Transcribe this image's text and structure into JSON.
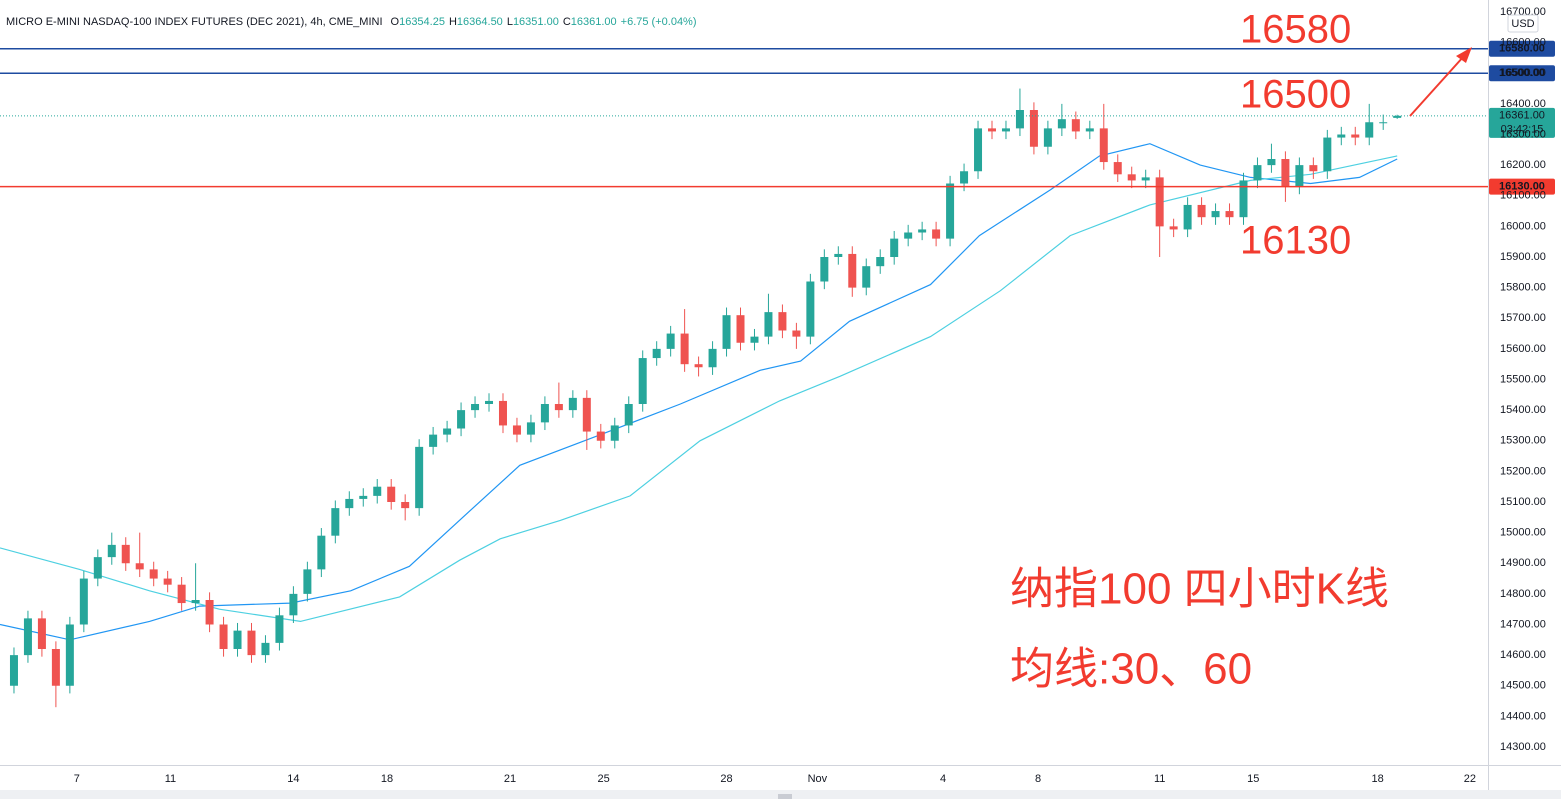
{
  "chart_data": {
    "type": "candlestick",
    "title": "MICRO E-MINI NASDAQ-100 INDEX FUTURES (DEC 2021), 4h, CME_MINI",
    "ohlc_header": [
      {
        "key": "O",
        "value": "16354.25"
      },
      {
        "key": "H",
        "value": "16364.50"
      },
      {
        "key": "L",
        "value": "16351.00"
      },
      {
        "key": "C",
        "value": "16361.00"
      }
    ],
    "change": "+6.75 (+0.04%)",
    "currency": "USD",
    "up_color": "#26a69a",
    "down_color": "#ef5350",
    "open": [
      14500,
      14600,
      14720,
      14620,
      14500,
      14700,
      14850,
      14920,
      14960,
      14900,
      14880,
      14850,
      14830,
      14770,
      14780,
      14700,
      14620,
      14680,
      14600,
      14640,
      14730,
      14800,
      14880,
      14990,
      15080,
      15110,
      15120,
      15150,
      15100,
      15080,
      15280,
      15320,
      15340,
      15400,
      15420,
      15430,
      15350,
      15320,
      15360,
      15420,
      15400,
      15440,
      15330,
      15300,
      15350,
      15420,
      15570,
      15600,
      15650,
      15550,
      15540,
      15600,
      15710,
      15620,
      15640,
      15720,
      15660,
      15640,
      15820,
      15900,
      15910,
      15800,
      15870,
      15900,
      15960,
      15980,
      15990,
      15960,
      16140,
      16180,
      16320,
      16310,
      16320,
      16380,
      16260,
      16320,
      16350,
      16310,
      16320,
      16210,
      16170,
      16150,
      16160,
      16000,
      15990,
      16070,
      16030,
      16050,
      16030,
      16150,
      16200,
      16220,
      16130,
      16200,
      16180,
      16290,
      16300,
      16290,
      16340,
      16354.25
    ],
    "high": [
      14625,
      14745,
      14745,
      14645,
      14725,
      14875,
      14945,
      15000,
      14985,
      15000,
      14905,
      14875,
      14855,
      14900,
      14805,
      14725,
      14705,
      14705,
      14665,
      14755,
      14825,
      14905,
      15015,
      15105,
      15135,
      15145,
      15175,
      15175,
      15125,
      15305,
      15345,
      15365,
      15425,
      15445,
      15455,
      15455,
      15375,
      15385,
      15445,
      15490,
      15465,
      15465,
      15355,
      15375,
      15445,
      15595,
      15625,
      15675,
      15730,
      15575,
      15625,
      15735,
      15735,
      15665,
      15780,
      15745,
      15685,
      15845,
      15925,
      15935,
      15935,
      15895,
      15925,
      15985,
      16005,
      16015,
      16015,
      16165,
      16205,
      16345,
      16345,
      16345,
      16450,
      16405,
      16345,
      16400,
      16375,
      16345,
      16400,
      16235,
      16195,
      16185,
      16185,
      16025,
      16095,
      16095,
      16075,
      16075,
      16175,
      16225,
      16270,
      16245,
      16225,
      16225,
      16315,
      16325,
      16325,
      16400,
      16365,
      16364.5
    ],
    "low": [
      14475,
      14575,
      14595,
      14430,
      14475,
      14675,
      14825,
      14895,
      14875,
      14855,
      14825,
      14805,
      14745,
      14745,
      14675,
      14595,
      14595,
      14575,
      14575,
      14615,
      14705,
      14775,
      14855,
      14965,
      15055,
      15085,
      15095,
      15075,
      15040,
      15055,
      15255,
      15295,
      15315,
      15375,
      15395,
      15325,
      15295,
      15295,
      15335,
      15375,
      15375,
      15270,
      15275,
      15275,
      15325,
      15395,
      15545,
      15575,
      15525,
      15510,
      15515,
      15575,
      15595,
      15595,
      15615,
      15635,
      15600,
      15615,
      15795,
      15875,
      15770,
      15775,
      15845,
      15875,
      15935,
      15955,
      15935,
      15935,
      16115,
      16155,
      16285,
      16285,
      16295,
      16235,
      16235,
      16295,
      16285,
      16285,
      16185,
      16145,
      16125,
      16125,
      15900,
      15965,
      15965,
      16005,
      16005,
      16005,
      16005,
      16125,
      16175,
      16080,
      16105,
      16155,
      16155,
      16265,
      16265,
      16265,
      16315,
      16351
    ],
    "close": [
      14600,
      14720,
      14620,
      14500,
      14700,
      14850,
      14920,
      14960,
      14900,
      14880,
      14850,
      14830,
      14770,
      14780,
      14700,
      14620,
      14680,
      14600,
      14640,
      14730,
      14800,
      14880,
      14990,
      15080,
      15110,
      15120,
      15150,
      15100,
      15080,
      15280,
      15320,
      15340,
      15400,
      15420,
      15430,
      15350,
      15320,
      15360,
      15420,
      15400,
      15440,
      15330,
      15300,
      15350,
      15420,
      15570,
      15600,
      15650,
      15550,
      15540,
      15600,
      15710,
      15620,
      15640,
      15720,
      15660,
      15640,
      15820,
      15900,
      15910,
      15800,
      15870,
      15900,
      15960,
      15980,
      15990,
      15960,
      16140,
      16180,
      16320,
      16310,
      16320,
      16380,
      16260,
      16320,
      16350,
      16310,
      16320,
      16210,
      16170,
      16150,
      16160,
      16000,
      15990,
      16070,
      16030,
      16050,
      16030,
      16150,
      16200,
      16220,
      16130,
      16200,
      16180,
      16290,
      16300,
      16290,
      16340,
      16340,
      16361
    ],
    "series": [
      {
        "color": "#2196f3",
        "x": [
          -1,
          4,
          9.7,
          13.3,
          19.8,
          24.1,
          28.3,
          32.6,
          36.2,
          42,
          47.7,
          53.4,
          56.3,
          59.8,
          65.6,
          69.1,
          74.2,
          77.7,
          81.3,
          84.9,
          88.5,
          92.8,
          96.3,
          99
        ],
        "values": [
          14700,
          14650,
          14710,
          14760,
          14770,
          14810,
          14890,
          15070,
          15220,
          15320,
          15420,
          15530,
          15560,
          15690,
          15810,
          15970,
          16120,
          16230,
          16270,
          16200,
          16160,
          16140,
          16160,
          16220
        ]
      },
      {
        "color": "#4dd0e1",
        "x": [
          -1,
          4.7,
          9.7,
          14.7,
          20.5,
          27.6,
          31.9,
          34.8,
          39.1,
          44.1,
          49.1,
          54.8,
          59.1,
          65.6,
          70.6,
          75.6,
          81.3,
          88.5,
          92.8,
          99
        ],
        "values": [
          14950,
          14880,
          14810,
          14750,
          14710,
          14790,
          14910,
          14980,
          15040,
          15120,
          15300,
          15430,
          15510,
          15640,
          15790,
          15970,
          16070,
          16150,
          16170,
          16230
        ]
      }
    ],
    "hlines": [
      {
        "value": 16580,
        "label": "16580.00",
        "color": "#1e4ba0"
      },
      {
        "value": 16500,
        "label": "16500.00",
        "color": "#1e4ba0"
      },
      {
        "value": 16130,
        "label": "16130.00",
        "color": "#f23b2f"
      }
    ],
    "last_price": {
      "value": 16361,
      "label": "16361.00",
      "countdown": "03:42:15"
    },
    "annotations": [
      "16580",
      "16500",
      "16130",
      "纳指100 四小时K线",
      "均线:30、60"
    ],
    "xlim": [
      -1,
      105.5
    ],
    "xticks": [
      {
        "value": 4.5,
        "label": "7"
      },
      {
        "value": 11.2,
        "label": "11"
      },
      {
        "value": 20,
        "label": "14"
      },
      {
        "value": 26.7,
        "label": "18"
      },
      {
        "value": 35.5,
        "label": "21"
      },
      {
        "value": 42.2,
        "label": "25"
      },
      {
        "value": 51,
        "label": "28"
      },
      {
        "value": 57.5,
        "label": "Nov"
      },
      {
        "value": 66.5,
        "label": "4"
      },
      {
        "value": 73.3,
        "label": "8"
      },
      {
        "value": 82,
        "label": "11"
      },
      {
        "value": 88.7,
        "label": "15"
      },
      {
        "value": 97.6,
        "label": "18"
      },
      {
        "value": 104.2,
        "label": "22"
      }
    ],
    "ylim": [
      14300,
      16700
    ],
    "yticks": [
      {
        "value": 14300,
        "label": "14300.00"
      },
      {
        "value": 14400,
        "label": "14400.00"
      },
      {
        "value": 14500,
        "label": "14500.00"
      },
      {
        "value": 14600,
        "label": "14600.00"
      },
      {
        "value": 14700,
        "label": "14700.00"
      },
      {
        "value": 14800,
        "label": "14800.00"
      },
      {
        "value": 14900,
        "label": "14900.00"
      },
      {
        "value": 15000,
        "label": "15000.00"
      },
      {
        "value": 15100,
        "label": "15100.00"
      },
      {
        "value": 15200,
        "label": "15200.00"
      },
      {
        "value": 15300,
        "label": "15300.00"
      },
      {
        "value": 15400,
        "label": "15400.00"
      },
      {
        "value": 15500,
        "label": "15500.00"
      },
      {
        "value": 15600,
        "label": "15600.00"
      },
      {
        "value": 15700,
        "label": "15700.00"
      },
      {
        "value": 15800,
        "label": "15800.00"
      },
      {
        "value": 15900,
        "label": "15900.00"
      },
      {
        "value": 16000,
        "label": "16000.00"
      },
      {
        "value": 16100,
        "label": "16100.00"
      },
      {
        "value": 16200,
        "label": "16200.00"
      },
      {
        "value": 16300,
        "label": "16300.00"
      },
      {
        "value": 16400,
        "label": "16400.00"
      },
      {
        "value": 16500,
        "label": "16500.00"
      },
      {
        "value": 16600,
        "label": "16600.00"
      },
      {
        "value": 16700,
        "label": "16700.00"
      }
    ],
    "grid": false
  }
}
